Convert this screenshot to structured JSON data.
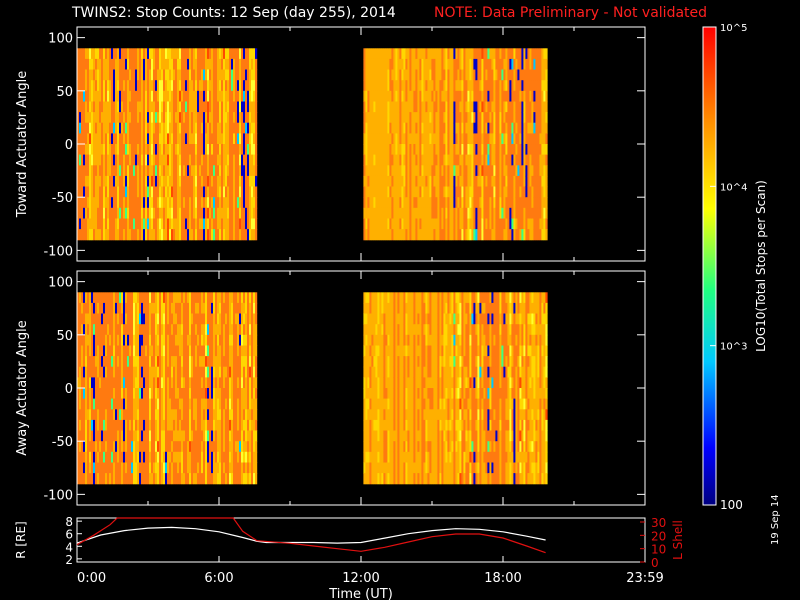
{
  "title": {
    "main": "TWINS2: Stop Counts: 12 Sep (day 255), 2014",
    "note": "NOTE: Data Preliminary - Not validated"
  },
  "date_stamp": "19 Sep 14",
  "colors": {
    "background": "#000000",
    "axes": "#ffffff",
    "note": "#ff2020",
    "lshell_line": "#e01010",
    "r_line": "#ffffff"
  },
  "chart_data": [
    {
      "type": "heatmap",
      "name": "toward",
      "ylabel": "Toward Actuator Angle",
      "ylim": [
        -110,
        110
      ],
      "yticks": [
        100,
        50,
        0,
        -50,
        -100
      ],
      "xlim": [
        0,
        24
      ],
      "data_y_range": [
        -90,
        90
      ],
      "data_blocks": [
        {
          "start_hour": 0.0,
          "end_hour": 7.6
        },
        {
          "start_hour": 12.1,
          "end_hour": 19.8
        }
      ],
      "dominant_value": "~10^4.5 - 10^5 (yellow-orange)",
      "color_scale": "log10"
    },
    {
      "type": "heatmap",
      "name": "away",
      "ylabel": "Away Actuator Angle",
      "ylim": [
        -110,
        110
      ],
      "yticks": [
        100,
        50,
        0,
        -50,
        -100
      ],
      "xlim": [
        0,
        24
      ],
      "data_y_range": [
        -90,
        90
      ],
      "data_blocks": [
        {
          "start_hour": 0.0,
          "end_hour": 7.6
        },
        {
          "start_hour": 12.1,
          "end_hour": 19.8
        }
      ],
      "dominant_value": "~10^4.5 - 10^5 (yellow-orange)",
      "color_scale": "log10"
    },
    {
      "type": "line",
      "name": "orbit",
      "ylabel_left": "R [RE]",
      "ylabel_right": "L Shell",
      "yticks_left": [
        8,
        6,
        4,
        2
      ],
      "ylim_left": [
        1.5,
        8.5
      ],
      "yticks_right": [
        30,
        20,
        10,
        0
      ],
      "ylim_right": [
        0,
        33
      ],
      "xlabel": "Time (UT)",
      "xtick_labels": [
        "0:00",
        "6:00",
        "12:00",
        "18:00",
        "23:59"
      ],
      "xtick_hours": [
        0,
        6,
        12,
        18,
        24
      ],
      "xlim": [
        0,
        24
      ],
      "series": [
        {
          "name": "R",
          "axis": "left",
          "points": [
            [
              0.0,
              4.5
            ],
            [
              1,
              5.8
            ],
            [
              2,
              6.5
            ],
            [
              3,
              6.9
            ],
            [
              4,
              7.0
            ],
            [
              5,
              6.8
            ],
            [
              6,
              6.3
            ],
            [
              7,
              5.4
            ],
            [
              7.6,
              4.8
            ],
            [
              8,
              4.6
            ],
            [
              9,
              4.6
            ],
            [
              10,
              4.6
            ],
            [
              11,
              4.5
            ],
            [
              12,
              4.6
            ],
            [
              13,
              5.3
            ],
            [
              14,
              6.0
            ],
            [
              15,
              6.5
            ],
            [
              16,
              6.8
            ],
            [
              17,
              6.7
            ],
            [
              18,
              6.3
            ],
            [
              19,
              5.6
            ],
            [
              19.8,
              5.0
            ]
          ]
        },
        {
          "name": "L Shell",
          "axis": "right",
          "points": [
            [
              0.0,
              13
            ],
            [
              0.7,
              20
            ],
            [
              1.4,
              28
            ],
            [
              1.7,
              33
            ],
            [
              6.6,
              33
            ],
            [
              7.0,
              23
            ],
            [
              7.6,
              16
            ],
            [
              9,
              14
            ],
            [
              10,
              12
            ],
            [
              11,
              10
            ],
            [
              12,
              8
            ],
            [
              13,
              11
            ],
            [
              14,
              15
            ],
            [
              15,
              19
            ],
            [
              16,
              21
            ],
            [
              17,
              21
            ],
            [
              18,
              18
            ],
            [
              19,
              12
            ],
            [
              19.8,
              7
            ]
          ]
        }
      ]
    }
  ],
  "colorbar": {
    "label": "LOG10(Total Stops per Scan)",
    "ticks": [
      "10^5",
      "10^4",
      "10^3",
      "100"
    ],
    "range_log": [
      2,
      5
    ]
  }
}
